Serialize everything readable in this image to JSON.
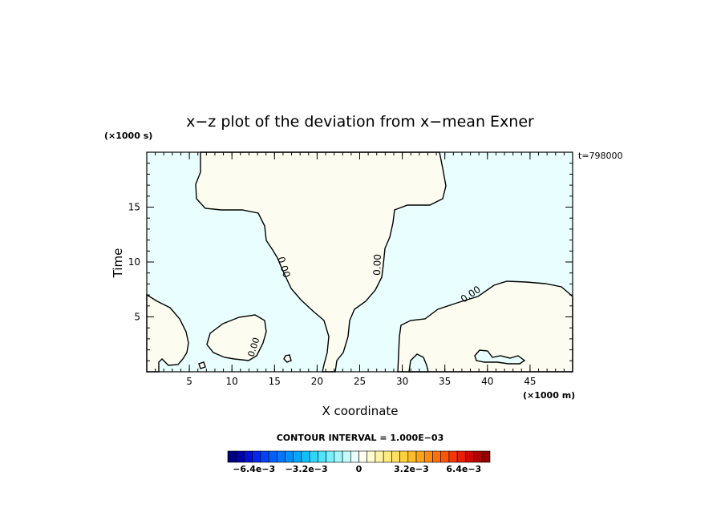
{
  "chart_data": {
    "type": "contour",
    "title": "x−z plot of the deviation from x−mean Exner",
    "xlabel": "X coordinate",
    "ylabel": "Time",
    "x_unit": "(×1000 m)",
    "y_unit": "(×1000 s)",
    "time_label": "t=798000",
    "xlim": [
      0,
      50
    ],
    "ylim": [
      0,
      20
    ],
    "x_ticks": [
      5,
      10,
      15,
      20,
      25,
      30,
      35,
      40,
      45
    ],
    "y_ticks": [
      5,
      10,
      15
    ],
    "contour_interval_label": "CONTOUR INTERVAL = 1.000E−03",
    "contour_labels": [
      "0.00",
      "0.00",
      "0.00"
    ],
    "regions": [
      {
        "name": "positive",
        "color": "#fdfcf0"
      },
      {
        "name": "negative",
        "color": "#e8feff"
      }
    ],
    "colorbar": {
      "range": [
        -0.008,
        0.008
      ],
      "tick_labels": [
        "−6.4e−3",
        "−3.2e−3",
        "0",
        "3.2e−3",
        "6.4e−3"
      ],
      "tick_values": [
        -0.0064,
        -0.0032,
        0,
        0.0032,
        0.0064
      ],
      "colors": [
        "#00007a",
        "#0000a8",
        "#0010d8",
        "#0028f0",
        "#0044f8",
        "#0060fc",
        "#0078fc",
        "#0090fc",
        "#00a8fc",
        "#10c0fc",
        "#30d4fc",
        "#50e4fc",
        "#78f0fc",
        "#a0f8fc",
        "#c4fcfc",
        "#e8feff",
        "#fffff2",
        "#fffcd0",
        "#fff4a8",
        "#ffec80",
        "#ffe060",
        "#ffd040",
        "#ffbc28",
        "#ffa418",
        "#ff8c10",
        "#ff7008",
        "#ff5400",
        "#f83800",
        "#e82000",
        "#d00800",
        "#b00000",
        "#900000"
      ]
    }
  }
}
